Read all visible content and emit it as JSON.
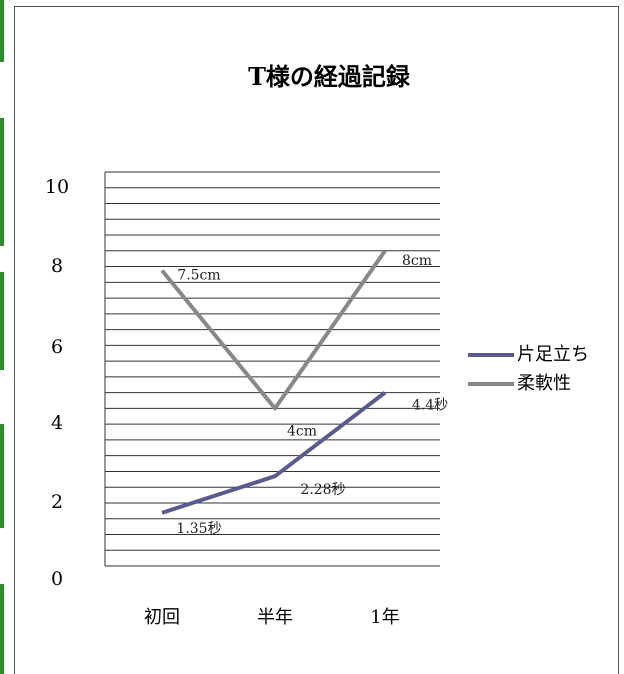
{
  "chart_data": {
    "type": "line",
    "title": "T様の経過記録",
    "categories": [
      "初回",
      "半年",
      "1年"
    ],
    "ylim": [
      0,
      10
    ],
    "yticks": [
      "0",
      "2",
      "4",
      "6",
      "8",
      "10"
    ],
    "grid": true,
    "legend_position": "right",
    "series": [
      {
        "name": "片足立ち",
        "values": [
          1.35,
          2.28,
          4.4
        ],
        "labels": [
          "1.35秒",
          "2.28秒",
          "4.4秒"
        ],
        "color": "#5a5a8f"
      },
      {
        "name": "柔軟性",
        "values": [
          7.5,
          4,
          8
        ],
        "labels": [
          "7.5cm",
          "4cm",
          "8cm"
        ],
        "color": "#888888"
      }
    ]
  },
  "colors": {
    "accent_bars": "#2e8b2e",
    "gridline": "#333333",
    "frame": "#555555"
  }
}
